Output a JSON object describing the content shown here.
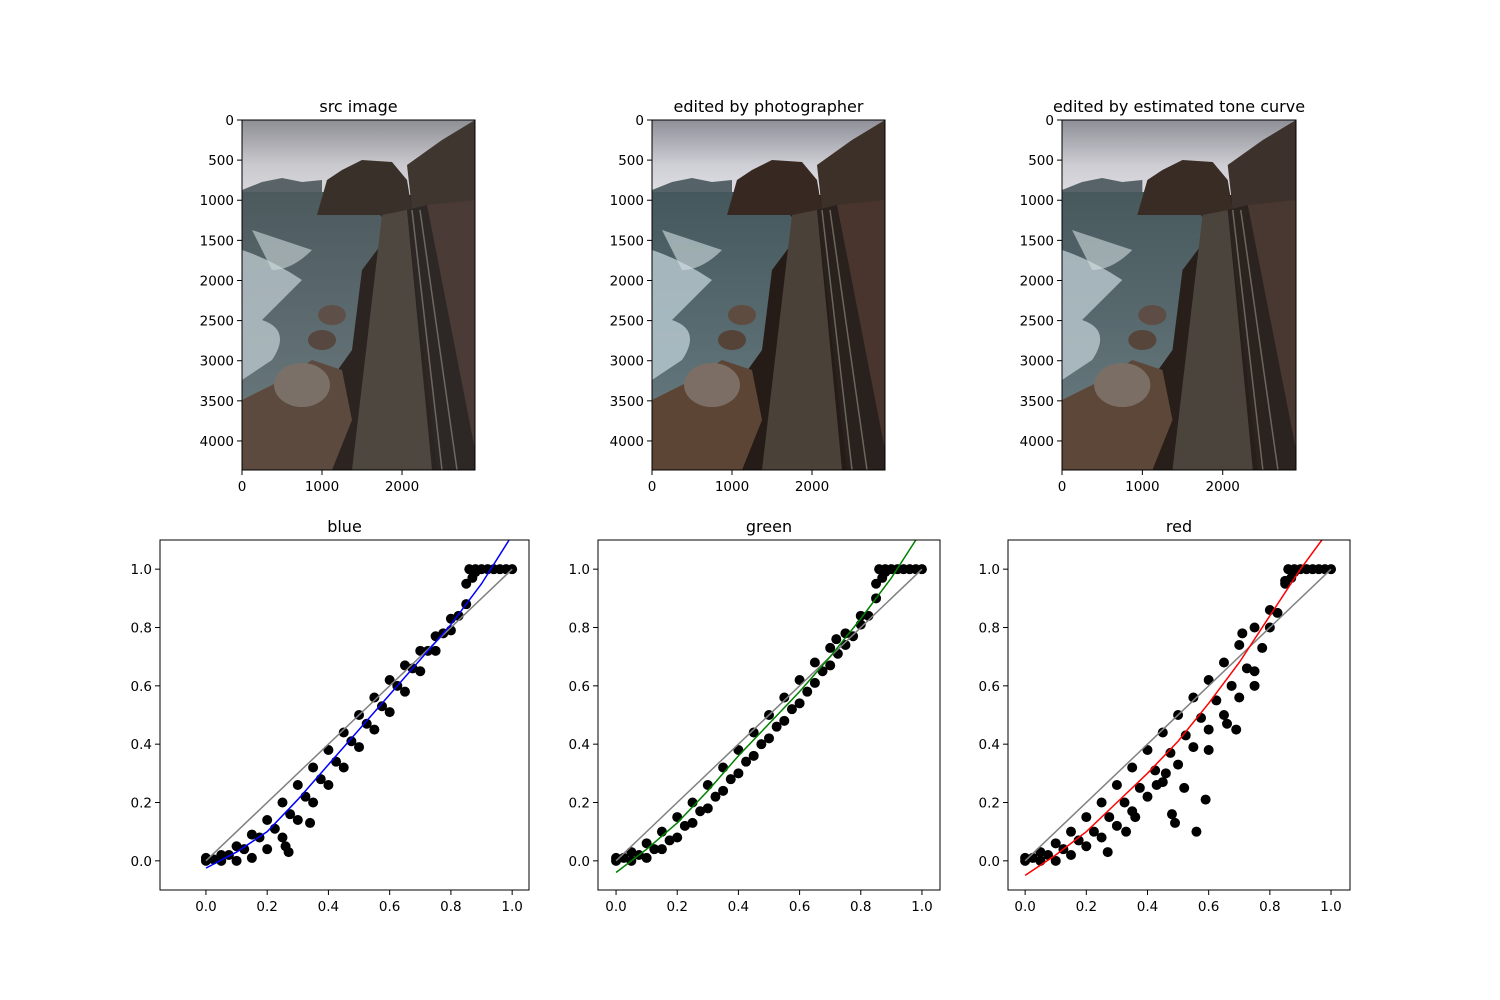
{
  "chart_data": [
    {
      "type": "image",
      "title": "src image",
      "xlim": [
        0,
        2912
      ],
      "ylim": [
        4362,
        0
      ],
      "xticks": [
        0,
        1000,
        2000
      ],
      "yticks": [
        0,
        500,
        1000,
        1500,
        2000,
        2500,
        3000,
        3500,
        4000
      ]
    },
    {
      "type": "image",
      "title": "edited by photographer",
      "xlim": [
        0,
        2912
      ],
      "ylim": [
        4362,
        0
      ],
      "xticks": [
        0,
        1000,
        2000
      ],
      "yticks": [
        0,
        500,
        1000,
        1500,
        2000,
        2500,
        3000,
        3500,
        4000
      ]
    },
    {
      "type": "image",
      "title": "edited by estimated tone curve",
      "xlim": [
        0,
        2912
      ],
      "ylim": [
        4362,
        0
      ],
      "xticks": [
        0,
        1000,
        2000
      ],
      "yticks": [
        0,
        500,
        1000,
        1500,
        2000,
        2500,
        3000,
        3500,
        4000
      ]
    },
    {
      "type": "scatter",
      "title": "blue",
      "xlim": [
        -0.15,
        1.055
      ],
      "ylim": [
        -0.1,
        1.1
      ],
      "xticks": [
        {
          "value": 0,
          "label": "0.0"
        },
        0.2,
        0.4,
        0.6,
        0.8,
        {
          "value": 1,
          "label": "1.0"
        }
      ],
      "yticks": [
        {
          "value": 0,
          "label": "0.0"
        },
        0.2,
        0.4,
        0.6,
        0.8,
        {
          "value": 1,
          "label": "1.0"
        }
      ],
      "scatter": {
        "color": "#000000",
        "x": [
          0,
          0.05,
          0.1,
          0.15,
          0.2,
          0.25,
          0.3,
          0.35,
          0.4,
          0.45,
          0.5,
          0.55,
          0.6,
          0.65,
          0.7,
          0.75,
          0.8,
          0.85,
          0,
          0.05,
          0.1,
          0.15,
          0.2,
          0.25,
          0.3,
          0.35,
          0.4,
          0.45,
          0.5,
          0.55,
          0.6,
          0.65,
          0.7,
          0.75,
          0.8,
          0.85,
          0.025,
          0.075,
          0.125,
          0.175,
          0.225,
          0.275,
          0.325,
          0.375,
          0.425,
          0.475,
          0.525,
          0.575,
          0.625,
          0.675,
          0.725,
          0.775,
          0.825,
          0.86,
          0.88,
          0.9,
          0.92,
          0.94,
          0.96,
          0.98,
          1,
          0.87,
          0.88,
          0.27,
          0.34,
          0.26
        ],
        "y": [
          0,
          0,
          0,
          0.01,
          0.04,
          0.08,
          0.14,
          0.2,
          0.26,
          0.32,
          0.39,
          0.45,
          0.51,
          0.58,
          0.65,
          0.72,
          0.79,
          0.88,
          0.01,
          0.02,
          0.05,
          0.09,
          0.14,
          0.2,
          0.26,
          0.32,
          0.38,
          0.44,
          0.5,
          0.56,
          0.62,
          0.67,
          0.72,
          0.77,
          0.83,
          0.95,
          0.005,
          0.02,
          0.04,
          0.08,
          0.11,
          0.16,
          0.22,
          0.28,
          0.34,
          0.41,
          0.47,
          0.53,
          0.6,
          0.66,
          0.72,
          0.78,
          0.84,
          1,
          1,
          1,
          1,
          1,
          1,
          1,
          1,
          0.97,
          0.99,
          0.03,
          0.13,
          0.05
        ]
      },
      "identity": {
        "color": "#808080",
        "x": [
          0,
          1
        ],
        "y": [
          0,
          1
        ]
      },
      "fit": {
        "color": "#0000ff",
        "x": [
          0,
          0.1,
          0.2,
          0.3,
          0.4,
          0.5,
          0.6,
          0.7,
          0.8,
          0.9,
          0.99
        ],
        "y": [
          -0.025,
          0.03,
          0.1,
          0.21,
          0.33,
          0.45,
          0.57,
          0.69,
          0.81,
          0.95,
          1.1
        ]
      }
    },
    {
      "type": "scatter",
      "title": "green",
      "xlim": [
        -0.059,
        1.059
      ],
      "ylim": [
        -0.1,
        1.1
      ],
      "xticks": [
        {
          "value": 0,
          "label": "0.0"
        },
        0.2,
        0.4,
        0.6,
        0.8,
        {
          "value": 1,
          "label": "1.0"
        }
      ],
      "yticks": [
        {
          "value": 0,
          "label": "0.0"
        },
        0.2,
        0.4,
        0.6,
        0.8,
        {
          "value": 1,
          "label": "1.0"
        }
      ],
      "scatter": {
        "color": "#000000",
        "x": [
          0,
          0.05,
          0.1,
          0.15,
          0.2,
          0.25,
          0.3,
          0.35,
          0.4,
          0.45,
          0.5,
          0.55,
          0.6,
          0.65,
          0.7,
          0.75,
          0.8,
          0.85,
          0,
          0.05,
          0.1,
          0.15,
          0.2,
          0.25,
          0.3,
          0.35,
          0.4,
          0.45,
          0.5,
          0.55,
          0.6,
          0.65,
          0.7,
          0.75,
          0.8,
          0.85,
          0.025,
          0.075,
          0.125,
          0.175,
          0.225,
          0.275,
          0.325,
          0.375,
          0.425,
          0.475,
          0.525,
          0.575,
          0.625,
          0.675,
          0.725,
          0.775,
          0.825,
          0.86,
          0.88,
          0.9,
          0.92,
          0.94,
          0.96,
          0.98,
          1,
          0.87,
          0.88,
          0.72
        ],
        "y": [
          0,
          0,
          0.01,
          0.04,
          0.08,
          0.13,
          0.18,
          0.24,
          0.3,
          0.36,
          0.42,
          0.48,
          0.54,
          0.61,
          0.67,
          0.74,
          0.81,
          0.9,
          0.01,
          0.03,
          0.06,
          0.1,
          0.15,
          0.2,
          0.26,
          0.32,
          0.38,
          0.44,
          0.5,
          0.56,
          0.62,
          0.68,
          0.73,
          0.78,
          0.84,
          0.95,
          0.01,
          0.02,
          0.04,
          0.07,
          0.12,
          0.17,
          0.22,
          0.28,
          0.34,
          0.4,
          0.46,
          0.52,
          0.58,
          0.65,
          0.71,
          0.77,
          0.84,
          1,
          1,
          1,
          1,
          1,
          1,
          1,
          1,
          0.97,
          0.99,
          0.76
        ]
      },
      "identity": {
        "color": "#808080",
        "x": [
          0,
          1
        ],
        "y": [
          0,
          1
        ]
      },
      "fit": {
        "color": "#008000",
        "x": [
          0,
          0.1,
          0.2,
          0.3,
          0.4,
          0.5,
          0.6,
          0.7,
          0.8,
          0.9,
          0.98
        ],
        "y": [
          -0.04,
          0.04,
          0.13,
          0.24,
          0.36,
          0.47,
          0.58,
          0.7,
          0.83,
          0.97,
          1.1
        ]
      }
    },
    {
      "type": "scatter",
      "title": "red",
      "xlim": [
        -0.056,
        1.062
      ],
      "ylim": [
        -0.1,
        1.1
      ],
      "xticks": [
        {
          "value": 0,
          "label": "0.0"
        },
        0.2,
        0.4,
        0.6,
        0.8,
        {
          "value": 1,
          "label": "1.0"
        }
      ],
      "yticks": [
        {
          "value": 0,
          "label": "0.0"
        },
        0.2,
        0.4,
        0.6,
        0.8,
        {
          "value": 1,
          "label": "1.0"
        }
      ],
      "scatter": {
        "color": "#000000",
        "x": [
          0,
          0.05,
          0.1,
          0.15,
          0.2,
          0.25,
          0.3,
          0.35,
          0.4,
          0.45,
          0.5,
          0.55,
          0.6,
          0.65,
          0.7,
          0.75,
          0.8,
          0.85,
          0,
          0.05,
          0.1,
          0.15,
          0.2,
          0.25,
          0.3,
          0.35,
          0.4,
          0.45,
          0.5,
          0.55,
          0.6,
          0.65,
          0.7,
          0.75,
          0.8,
          0.85,
          0.025,
          0.075,
          0.125,
          0.175,
          0.225,
          0.275,
          0.325,
          0.375,
          0.425,
          0.475,
          0.525,
          0.575,
          0.625,
          0.675,
          0.725,
          0.775,
          0.825,
          0.86,
          0.88,
          0.9,
          0.92,
          0.94,
          0.96,
          0.98,
          1,
          0.87,
          0.88,
          0.27,
          0.33,
          0.36,
          0.43,
          0.46,
          0.48,
          0.49,
          0.52,
          0.56,
          0.59,
          0.6,
          0.66,
          0.69,
          0.71,
          0.75
        ],
        "y": [
          0,
          0,
          0,
          0.02,
          0.05,
          0.08,
          0.12,
          0.17,
          0.22,
          0.27,
          0.33,
          0.39,
          0.45,
          0.5,
          0.56,
          0.65,
          0.8,
          0.95,
          0.01,
          0.03,
          0.06,
          0.1,
          0.15,
          0.2,
          0.26,
          0.32,
          0.38,
          0.44,
          0.5,
          0.56,
          0.62,
          0.68,
          0.74,
          0.8,
          0.86,
          0.96,
          0.01,
          0.02,
          0.04,
          0.07,
          0.1,
          0.15,
          0.2,
          0.25,
          0.31,
          0.37,
          0.43,
          0.49,
          0.55,
          0.6,
          0.66,
          0.73,
          0.85,
          1,
          1,
          1,
          1,
          1,
          1,
          1,
          1,
          0.97,
          0.99,
          0.03,
          0.1,
          0.15,
          0.26,
          0.3,
          0.16,
          0.13,
          0.25,
          0.1,
          0.21,
          0.38,
          0.47,
          0.45,
          0.78,
          0.6
        ]
      },
      "identity": {
        "color": "#808080",
        "x": [
          0,
          1
        ],
        "y": [
          0,
          1
        ]
      },
      "fit": {
        "color": "#ff0000",
        "x": [
          0,
          0.1,
          0.2,
          0.3,
          0.4,
          0.5,
          0.6,
          0.7,
          0.8,
          0.9,
          0.97
        ],
        "y": [
          -0.05,
          0.02,
          0.1,
          0.2,
          0.3,
          0.41,
          0.54,
          0.68,
          0.84,
          1.0,
          1.1
        ]
      }
    }
  ]
}
